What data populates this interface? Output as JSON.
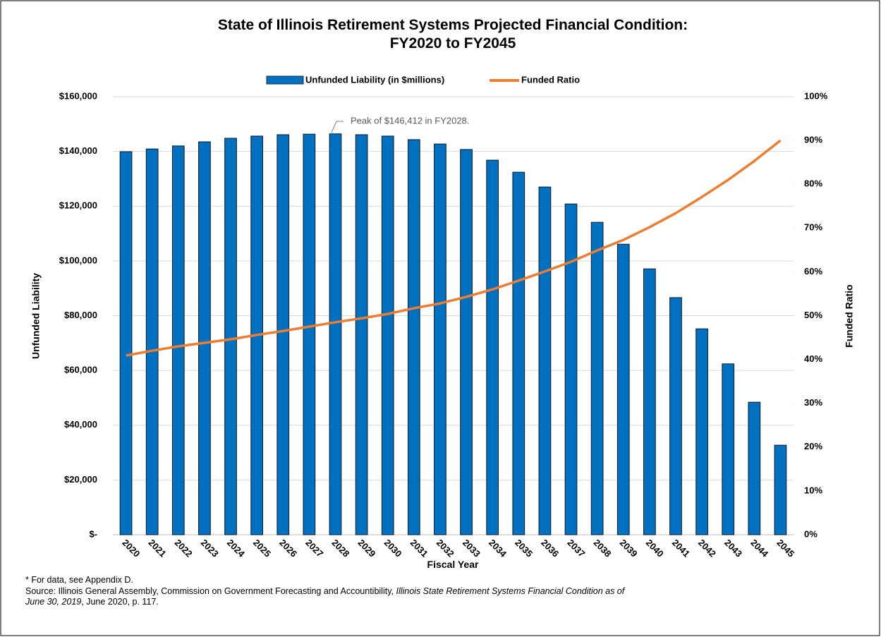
{
  "chart_data": {
    "type": "bar",
    "title": [
      "State of Illinois Retirement Systems Projected Financial Condition:",
      "FY2020 to FY2045"
    ],
    "xlabel": "Fiscal Year",
    "ylabel": "Unfunded Liability",
    "y2label": "Funded Ratio",
    "annotation": "Peak of  $146,412  in FY2028.",
    "categories": [
      "2020",
      "2021",
      "2022",
      "2023",
      "2024",
      "2025",
      "2026",
      "2027",
      "2028",
      "2029",
      "2030",
      "2031",
      "2032",
      "2033",
      "2034",
      "2035",
      "2036",
      "2037",
      "2038",
      "2039",
      "2040",
      "2041",
      "2042",
      "2043",
      "2044",
      "2045"
    ],
    "series": [
      {
        "name": "Unfunded Liability (in $millions)",
        "type": "bar",
        "color": "#0070c0",
        "values": [
          139900,
          140900,
          142000,
          143500,
          144800,
          145600,
          146100,
          146300,
          146412,
          146100,
          145600,
          144300,
          142700,
          140700,
          136800,
          132400,
          127000,
          120800,
          114100,
          106100,
          97100,
          86600,
          75200,
          62400,
          48400,
          32700
        ]
      },
      {
        "name": "Funded Ratio",
        "type": "line",
        "axis": "y2",
        "color": "#ed7d31",
        "values": [
          40.9,
          42.0,
          43.0,
          43.8,
          44.6,
          45.6,
          46.5,
          47.5,
          48.5,
          49.4,
          50.4,
          51.7,
          52.8,
          54.3,
          56.0,
          58.0,
          60.1,
          62.3,
          64.9,
          67.3,
          70.2,
          73.4,
          77.1,
          81.0,
          85.3,
          90.0
        ]
      }
    ],
    "ylim": [
      0,
      160000
    ],
    "yticks": [
      {
        "value": 0,
        "label": "$-"
      },
      {
        "value": 20000,
        "label": "$20,000"
      },
      {
        "value": 40000,
        "label": "$40,000"
      },
      {
        "value": 60000,
        "label": "$60,000"
      },
      {
        "value": 80000,
        "label": "$80,000"
      },
      {
        "value": 100000,
        "label": "$100,000"
      },
      {
        "value": 120000,
        "label": "$120,000"
      },
      {
        "value": 140000,
        "label": "$140,000"
      },
      {
        "value": 160000,
        "label": "$160,000"
      }
    ],
    "y2lim": [
      0,
      100
    ],
    "y2ticks": [
      {
        "value": 0,
        "label": "0%"
      },
      {
        "value": 10,
        "label": "10%"
      },
      {
        "value": 20,
        "label": "20%"
      },
      {
        "value": 30,
        "label": "30%"
      },
      {
        "value": 40,
        "label": "40%"
      },
      {
        "value": 50,
        "label": "50%"
      },
      {
        "value": 60,
        "label": "60%"
      },
      {
        "value": 70,
        "label": "70%"
      },
      {
        "value": 80,
        "label": "80%"
      },
      {
        "value": 90,
        "label": "90%"
      },
      {
        "value": 100,
        "label": "100%"
      }
    ],
    "grid": true,
    "legend": "top",
    "footnote": "* For data, see Appendix D.",
    "source": [
      "Source: Illinois General Assembly, Commission on Government Forecasting and Accountibility, ",
      "Illinois State Retirement Systems Financial Condition as of",
      "June 30, 2019",
      ", June 2020, p. 117."
    ]
  }
}
